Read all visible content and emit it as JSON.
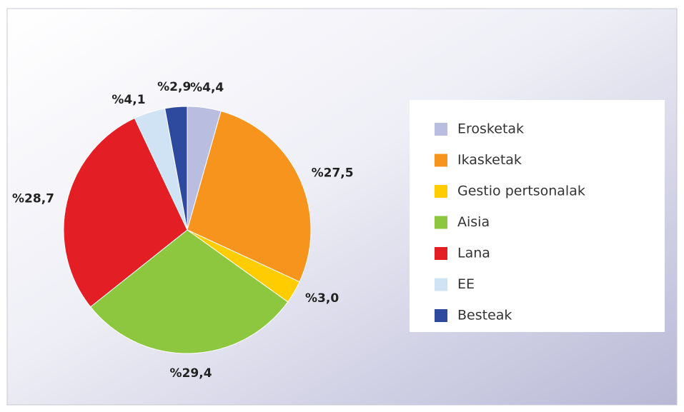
{
  "chart_data": {
    "type": "pie",
    "categories": [
      "Erosketak",
      "Ikasketak",
      "Gestio pertsonalak",
      "Aisia",
      "Lana",
      "EE",
      "Besteak"
    ],
    "values": [
      4.4,
      27.5,
      3.0,
      29.4,
      28.7,
      4.1,
      2.9
    ],
    "value_labels": [
      "%4,4",
      "%27,5",
      "%3,0",
      "%29,4",
      "%28,7",
      "%4,1",
      "%2,9"
    ],
    "colors": [
      "#b9bde0",
      "#f7941d",
      "#ffcc00",
      "#8dc63f",
      "#e31e24",
      "#cfe3f5",
      "#2e4a9e"
    ],
    "legend": "right"
  }
}
